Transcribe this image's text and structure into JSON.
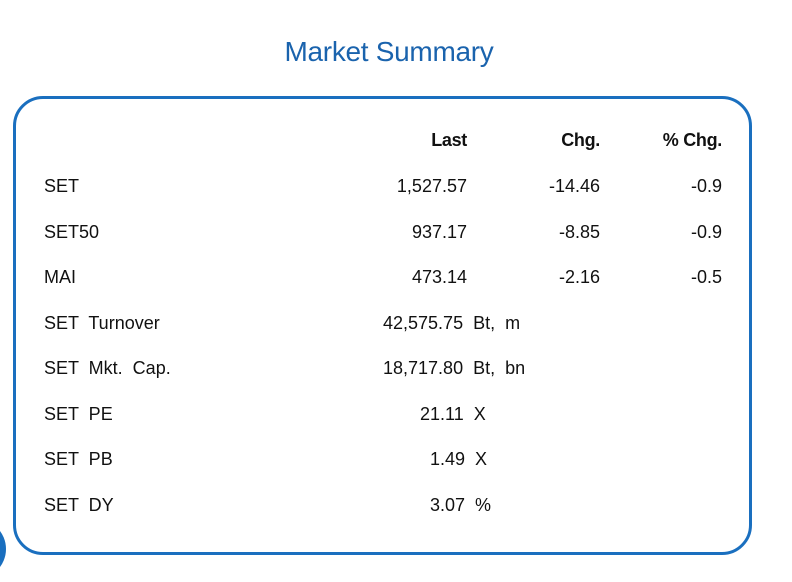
{
  "title": "Market Summary",
  "headers": {
    "last": "Last",
    "chg": "Chg.",
    "pct": "% Chg."
  },
  "indices": [
    {
      "name": "SET",
      "last": "1,527.57",
      "chg": "-14.46",
      "pct": "-0.9"
    },
    {
      "name": "SET50",
      "last": "937.17",
      "chg": "-8.85",
      "pct": "-0.9"
    },
    {
      "name": "MAI",
      "last": "473.14",
      "chg": "-2.16",
      "pct": "-0.5"
    }
  ],
  "stats": [
    {
      "name": "SET  Turnover",
      "value": "42,575.75  Bt,  m"
    },
    {
      "name": "SET  Mkt.  Cap.",
      "value": "18,717.80  Bt,  bn"
    },
    {
      "name": "SET  PE",
      "value": "21.11  X"
    },
    {
      "name": "SET  PB",
      "value": "1.49  X"
    },
    {
      "name": "SET  DY",
      "value": "3.07  %"
    }
  ],
  "colors": {
    "title": "#1a63ad",
    "border": "#1a6fbf"
  }
}
